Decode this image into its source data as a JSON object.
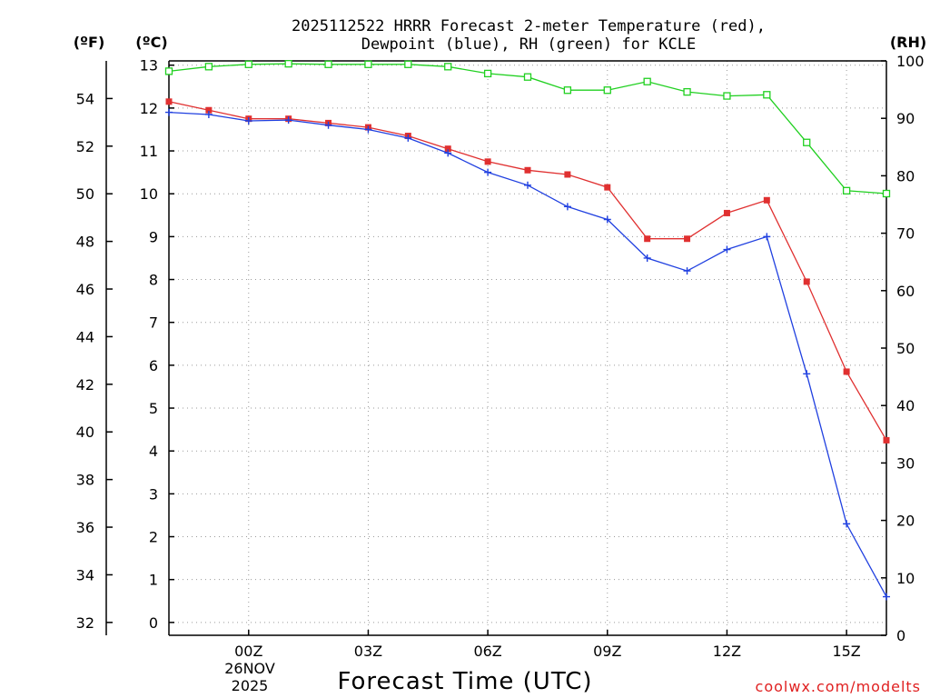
{
  "chart_data": {
    "type": "line",
    "title_lines": [
      "2025112522 HRRR Forecast 2-meter Temperature (red),",
      "Dewpoint (blue), RH (green) for KCLE"
    ],
    "xlabel": "Forecast Time (UTC)",
    "x_range": [
      -2,
      16
    ],
    "x_ticks": [
      {
        "value": 0,
        "label": "00Z"
      },
      {
        "value": 3,
        "label": "03Z"
      },
      {
        "value": 6,
        "label": "06Z"
      },
      {
        "value": 9,
        "label": "09Z"
      },
      {
        "value": 12,
        "label": "12Z"
      },
      {
        "value": 15,
        "label": "15Z"
      }
    ],
    "date_label_lines": [
      "26NOV",
      "2025"
    ],
    "y_left_celsius": {
      "label": "(ºC)",
      "range": [
        -0.3,
        13.1
      ],
      "ticks": [
        0,
        1,
        2,
        3,
        4,
        5,
        6,
        7,
        8,
        9,
        10,
        11,
        12,
        13
      ]
    },
    "y_left_fahrenheit": {
      "label": "(ºF)",
      "ticks": [
        32,
        34,
        36,
        38,
        40,
        42,
        44,
        46,
        48,
        50,
        52,
        54
      ]
    },
    "y_right_rh": {
      "label": "(RH)",
      "range": [
        0,
        100
      ],
      "ticks": [
        0,
        10,
        20,
        30,
        40,
        50,
        60,
        70,
        80,
        90,
        100
      ]
    },
    "series": [
      {
        "name": "Temperature",
        "axis": "celsius",
        "color": "#e03030",
        "marker": "filled-square",
        "x": [
          -2,
          -1,
          0,
          1,
          2,
          3,
          4,
          5,
          6,
          7,
          8,
          9,
          10,
          11,
          12,
          13,
          14,
          15,
          16
        ],
        "values": [
          12.15,
          11.95,
          11.75,
          11.75,
          11.65,
          11.55,
          11.35,
          11.05,
          10.75,
          10.55,
          10.45,
          10.15,
          8.95,
          8.95,
          9.55,
          9.85,
          7.95,
          5.85,
          4.25
        ]
      },
      {
        "name": "Dewpoint",
        "axis": "celsius",
        "color": "#2040e0",
        "marker": "plus",
        "x": [
          -2,
          -1,
          0,
          1,
          2,
          3,
          4,
          5,
          6,
          7,
          8,
          9,
          10,
          11,
          12,
          13,
          14,
          15,
          16
        ],
        "values": [
          11.9,
          11.85,
          11.7,
          11.72,
          11.6,
          11.5,
          11.3,
          10.95,
          10.5,
          10.2,
          9.7,
          9.4,
          8.5,
          8.2,
          8.7,
          9.0,
          5.8,
          2.3,
          0.6
        ]
      },
      {
        "name": "RH",
        "axis": "rh",
        "color": "#20d020",
        "marker": "open-square",
        "x": [
          -2,
          -1,
          0,
          1,
          2,
          3,
          4,
          5,
          6,
          7,
          8,
          9,
          10,
          11,
          12,
          13,
          14,
          15,
          16
        ],
        "values": [
          98.2,
          99.0,
          99.4,
          99.5,
          99.4,
          99.4,
          99.4,
          99.0,
          97.8,
          97.2,
          94.9,
          94.9,
          96.4,
          94.6,
          93.9,
          94.1,
          85.8,
          77.4,
          76.9
        ]
      }
    ],
    "credit": "coolwx.com/modelts"
  }
}
